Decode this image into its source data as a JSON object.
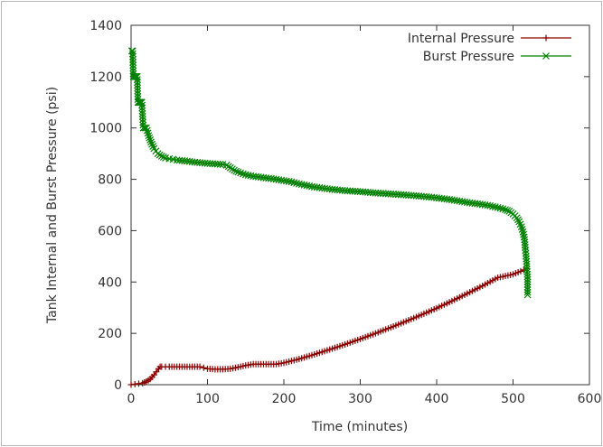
{
  "chart_data": {
    "type": "line",
    "xlabel": "Time (minutes)",
    "ylabel": "Tank Internal and Burst Pressure (psi)",
    "xlim": [
      0,
      600
    ],
    "ylim": [
      0,
      1400
    ],
    "x_ticks": [
      0,
      100,
      200,
      300,
      400,
      500,
      600
    ],
    "y_ticks": [
      0,
      200,
      400,
      600,
      800,
      1000,
      1200,
      1400
    ],
    "grid": false,
    "legend_position": "top-right",
    "series": [
      {
        "name": "Internal Pressure",
        "color": "#8b0000",
        "marker": "plus",
        "x": [
          0,
          5,
          10,
          15,
          20,
          25,
          30,
          33,
          36,
          38,
          40,
          45,
          50,
          60,
          70,
          80,
          90,
          95,
          100,
          110,
          120,
          130,
          140,
          150,
          160,
          170,
          180,
          190,
          200,
          220,
          240,
          260,
          280,
          300,
          320,
          340,
          360,
          380,
          400,
          420,
          440,
          460,
          480,
          500,
          510,
          518
        ],
        "y": [
          0,
          2,
          4,
          6,
          12,
          22,
          38,
          50,
          62,
          70,
          70,
          70,
          70,
          70,
          70,
          70,
          70,
          66,
          62,
          60,
          60,
          62,
          68,
          75,
          80,
          80,
          80,
          80,
          85,
          100,
          118,
          137,
          157,
          178,
          200,
          223,
          247,
          272,
          298,
          326,
          355,
          385,
          417,
          430,
          442,
          452
        ]
      },
      {
        "name": "Burst Pressure",
        "color": "#008000",
        "marker": "x",
        "x": [
          1,
          2,
          3,
          4,
          5,
          6,
          7,
          8,
          9,
          10,
          11,
          12,
          13,
          14,
          16,
          18,
          20,
          23,
          26,
          30,
          35,
          40,
          45,
          50,
          55,
          60,
          70,
          80,
          90,
          100,
          110,
          120,
          125,
          130,
          135,
          140,
          150,
          160,
          170,
          180,
          190,
          200,
          210,
          220,
          230,
          240,
          250,
          260,
          270,
          280,
          290,
          300,
          320,
          340,
          360,
          380,
          400,
          420,
          440,
          460,
          470,
          480,
          490,
          495,
          500,
          505,
          508,
          511,
          513,
          515,
          516,
          517,
          518,
          518,
          519,
          519,
          519,
          519
        ],
        "y": [
          1300,
          1300,
          1200,
          1200,
          1200,
          1200,
          1200,
          1200,
          1100,
          1100,
          1100,
          1100,
          1100,
          1100,
          1000,
          1000,
          1000,
          970,
          945,
          920,
          900,
          890,
          883,
          880,
          878,
          875,
          872,
          868,
          865,
          862,
          860,
          858,
          855,
          845,
          835,
          828,
          818,
          812,
          808,
          804,
          800,
          795,
          790,
          782,
          776,
          770,
          766,
          762,
          759,
          756,
          754,
          752,
          747,
          743,
          739,
          734,
          728,
          720,
          710,
          702,
          697,
          690,
          682,
          676,
          665,
          650,
          635,
          615,
          595,
          565,
          535,
          500,
          470,
          450,
          420,
          400,
          380,
          350
        ]
      }
    ]
  }
}
